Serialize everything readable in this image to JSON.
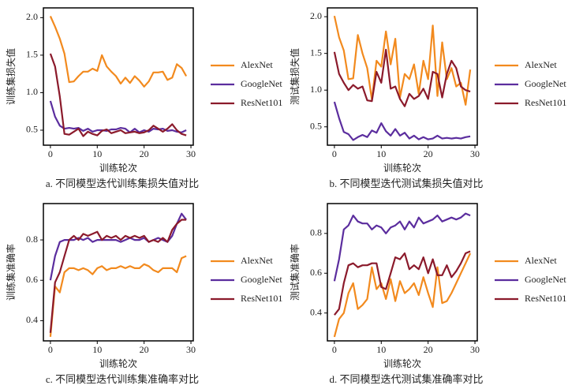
{
  "chart_data": [
    {
      "type": "line",
      "ylabel": "训练集损失值",
      "xlabel": "训练轮次",
      "caption": "a. 不同模型迭代训练集损失值对比",
      "x": [
        0,
        1,
        2,
        3,
        4,
        5,
        6,
        7,
        8,
        9,
        10,
        11,
        12,
        13,
        14,
        15,
        16,
        17,
        18,
        19,
        20,
        21,
        22,
        23,
        24,
        25,
        26,
        27,
        28,
        29
      ],
      "xlim": [
        -1.5,
        30.5
      ],
      "xticks": [
        0,
        10,
        20,
        30
      ],
      "ylim": [
        0.3,
        2.13
      ],
      "yticks": [
        0.5,
        {
          "value": 1.0,
          "label": "1.0"
        },
        1.5,
        {
          "value": 2.0,
          "label": "2.0"
        }
      ],
      "legend": "right",
      "series": [
        {
          "name": "AlexNet",
          "color": "#f28a1e",
          "values": [
            2.02,
            1.88,
            1.72,
            1.52,
            1.14,
            1.15,
            1.22,
            1.28,
            1.28,
            1.32,
            1.29,
            1.5,
            1.35,
            1.28,
            1.22,
            1.12,
            1.2,
            1.13,
            1.22,
            1.16,
            1.08,
            1.15,
            1.27,
            1.27,
            1.28,
            1.17,
            1.2,
            1.38,
            1.33,
            1.22
          ]
        },
        {
          "name": "GoogleNet",
          "color": "#5b2d9e",
          "values": [
            0.89,
            0.68,
            0.56,
            0.52,
            0.53,
            0.52,
            0.53,
            0.49,
            0.52,
            0.48,
            0.5,
            0.5,
            0.49,
            0.51,
            0.51,
            0.53,
            0.52,
            0.47,
            0.52,
            0.47,
            0.5,
            0.48,
            0.52,
            0.51,
            0.52,
            0.49,
            0.5,
            0.48,
            0.47,
            0.5
          ]
        },
        {
          "name": "ResNet101",
          "color": "#8b1a2b",
          "values": [
            1.52,
            1.35,
            0.95,
            0.45,
            0.44,
            0.48,
            0.52,
            0.42,
            0.48,
            0.45,
            0.43,
            0.49,
            0.51,
            0.46,
            0.48,
            0.5,
            0.46,
            0.47,
            0.48,
            0.46,
            0.47,
            0.5,
            0.56,
            0.52,
            0.48,
            0.52,
            0.58,
            0.5,
            0.45,
            0.43
          ]
        }
      ]
    },
    {
      "type": "line",
      "ylabel": "测试集损失值",
      "xlabel": "训练轮次",
      "caption": "b. 不同模型迭代测试集损失值对比",
      "x": [
        0,
        1,
        2,
        3,
        4,
        5,
        6,
        7,
        8,
        9,
        10,
        11,
        12,
        13,
        14,
        15,
        16,
        17,
        18,
        19,
        20,
        21,
        22,
        23,
        24,
        25,
        26,
        27,
        28,
        29
      ],
      "xlim": [
        -1.5,
        30.5
      ],
      "xticks": [
        0,
        10,
        20,
        30
      ],
      "ylim": [
        0.25,
        2.12
      ],
      "yticks": [
        0.5,
        {
          "value": 1.0,
          "label": "1.0"
        },
        1.5,
        {
          "value": 2.0,
          "label": "2.0"
        }
      ],
      "legend": "right",
      "series": [
        {
          "name": "AlexNet",
          "color": "#f28a1e",
          "values": [
            2.01,
            1.72,
            1.54,
            1.15,
            1.16,
            1.75,
            1.5,
            1.3,
            0.87,
            1.4,
            1.32,
            1.8,
            1.35,
            1.7,
            0.9,
            1.22,
            1.15,
            1.35,
            0.95,
            1.4,
            1.15,
            1.88,
            0.92,
            1.65,
            1.15,
            1.3,
            1.05,
            1.1,
            0.8,
            1.28
          ]
        },
        {
          "name": "GoogleNet",
          "color": "#5b2d9e",
          "values": [
            0.84,
            0.62,
            0.43,
            0.4,
            0.32,
            0.36,
            0.39,
            0.36,
            0.45,
            0.42,
            0.55,
            0.44,
            0.38,
            0.47,
            0.38,
            0.42,
            0.34,
            0.38,
            0.33,
            0.36,
            0.33,
            0.34,
            0.38,
            0.34,
            0.35,
            0.34,
            0.35,
            0.34,
            0.36,
            0.37
          ]
        },
        {
          "name": "ResNet101",
          "color": "#8b1a2b",
          "values": [
            1.52,
            1.22,
            1.1,
            1.0,
            1.07,
            1.02,
            1.05,
            0.86,
            0.85,
            1.25,
            1.1,
            1.55,
            1.02,
            1.05,
            0.88,
            0.78,
            0.95,
            0.88,
            0.92,
            1.02,
            0.88,
            1.25,
            1.22,
            0.9,
            1.22,
            1.4,
            1.3,
            1.05,
            1.0,
            0.98
          ]
        }
      ]
    },
    {
      "type": "line",
      "ylabel": "训练集准确率",
      "xlabel": "训练轮次",
      "caption": "c. 不同模型迭代训练集准确率对比",
      "x": [
        0,
        1,
        2,
        3,
        4,
        5,
        6,
        7,
        8,
        9,
        10,
        11,
        12,
        13,
        14,
        15,
        16,
        17,
        18,
        19,
        20,
        21,
        22,
        23,
        24,
        25,
        26,
        27,
        28,
        29
      ],
      "xlim": [
        -1.5,
        30.5
      ],
      "xticks": [
        0,
        10,
        20,
        30
      ],
      "ylim": [
        0.3,
        0.98
      ],
      "yticks": [
        0.4,
        0.6,
        0.8
      ],
      "legend": "right",
      "series": [
        {
          "name": "AlexNet",
          "color": "#f28a1e",
          "values": [
            0.32,
            0.57,
            0.54,
            0.64,
            0.66,
            0.66,
            0.65,
            0.66,
            0.65,
            0.63,
            0.66,
            0.67,
            0.65,
            0.66,
            0.66,
            0.67,
            0.66,
            0.67,
            0.66,
            0.66,
            0.68,
            0.67,
            0.65,
            0.64,
            0.66,
            0.66,
            0.66,
            0.64,
            0.71,
            0.72
          ]
        },
        {
          "name": "GoogleNet",
          "color": "#5b2d9e",
          "values": [
            0.6,
            0.72,
            0.79,
            0.8,
            0.8,
            0.8,
            0.81,
            0.8,
            0.81,
            0.79,
            0.8,
            0.8,
            0.8,
            0.8,
            0.8,
            0.79,
            0.8,
            0.81,
            0.8,
            0.8,
            0.81,
            0.79,
            0.8,
            0.81,
            0.8,
            0.79,
            0.82,
            0.88,
            0.93,
            0.9
          ]
        },
        {
          "name": "ResNet101",
          "color": "#8b1a2b",
          "values": [
            0.34,
            0.59,
            0.64,
            0.72,
            0.8,
            0.82,
            0.8,
            0.83,
            0.82,
            0.83,
            0.84,
            0.8,
            0.82,
            0.81,
            0.82,
            0.8,
            0.82,
            0.81,
            0.82,
            0.81,
            0.82,
            0.79,
            0.8,
            0.79,
            0.81,
            0.79,
            0.85,
            0.88,
            0.9,
            0.9
          ]
        }
      ]
    },
    {
      "type": "line",
      "ylabel": "测试集准确率",
      "xlabel": "训练轮次",
      "caption": "d. 不同模型迭代测试集准确率对比",
      "x": [
        0,
        1,
        2,
        3,
        4,
        5,
        6,
        7,
        8,
        9,
        10,
        11,
        12,
        13,
        14,
        15,
        16,
        17,
        18,
        19,
        20,
        21,
        22,
        23,
        24,
        25,
        26,
        27,
        28,
        29
      ],
      "xlim": [
        -1.5,
        30.5
      ],
      "xticks": [
        0,
        10,
        20,
        30
      ],
      "ylim": [
        0.26,
        0.95
      ],
      "yticks": [
        0.4,
        0.6,
        0.8
      ],
      "legend": "right",
      "series": [
        {
          "name": "AlexNet",
          "color": "#f28a1e",
          "values": [
            0.28,
            0.37,
            0.4,
            0.5,
            0.55,
            0.42,
            0.44,
            0.47,
            0.63,
            0.52,
            0.55,
            0.47,
            0.57,
            0.46,
            0.56,
            0.5,
            0.52,
            0.55,
            0.49,
            0.58,
            0.5,
            0.43,
            0.63,
            0.45,
            0.46,
            0.5,
            0.55,
            0.6,
            0.65,
            0.7
          ]
        },
        {
          "name": "GoogleNet",
          "color": "#5b2d9e",
          "values": [
            0.56,
            0.67,
            0.82,
            0.84,
            0.89,
            0.86,
            0.85,
            0.85,
            0.82,
            0.84,
            0.83,
            0.8,
            0.83,
            0.84,
            0.86,
            0.82,
            0.86,
            0.83,
            0.88,
            0.85,
            0.86,
            0.87,
            0.89,
            0.86,
            0.87,
            0.88,
            0.87,
            0.88,
            0.9,
            0.89
          ]
        },
        {
          "name": "ResNet101",
          "color": "#8b1a2b",
          "values": [
            0.39,
            0.42,
            0.55,
            0.64,
            0.65,
            0.63,
            0.64,
            0.64,
            0.65,
            0.65,
            0.53,
            0.52,
            0.6,
            0.68,
            0.67,
            0.7,
            0.62,
            0.64,
            0.62,
            0.68,
            0.6,
            0.67,
            0.59,
            0.59,
            0.64,
            0.58,
            0.61,
            0.65,
            0.7,
            0.71
          ]
        }
      ]
    }
  ]
}
